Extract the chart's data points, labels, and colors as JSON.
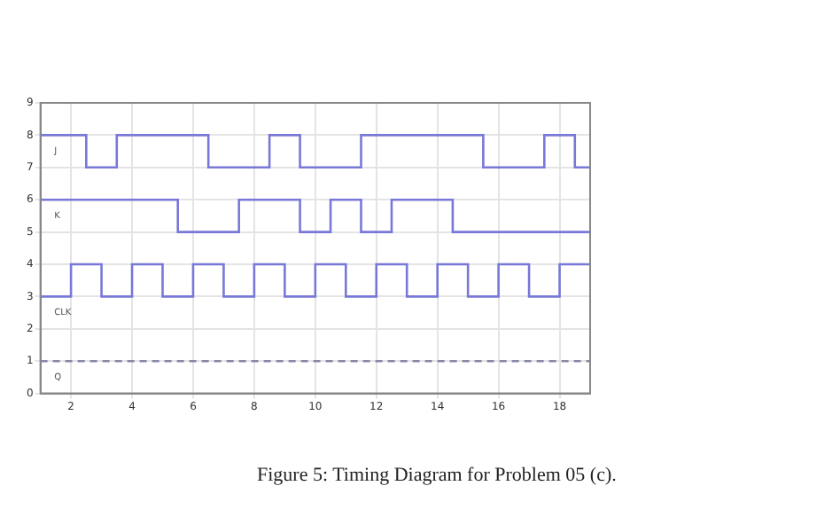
{
  "chart_data": {
    "type": "step",
    "xlim": [
      1,
      19
    ],
    "xticks": [
      2,
      4,
      6,
      8,
      10,
      12,
      14,
      16,
      18
    ],
    "ylim": [
      0,
      9
    ],
    "yticks": [
      0,
      1,
      2,
      3,
      4,
      5,
      6,
      7,
      8,
      9
    ],
    "grid": true,
    "legend": false,
    "marker": "none",
    "series": [
      {
        "name": "J",
        "color": "#7878d8",
        "x": [
          1,
          2.5,
          3.5,
          6.5,
          8.5,
          9.5,
          11.5,
          15.5,
          17.5,
          18.5,
          19
        ],
        "values": [
          8,
          7,
          8,
          7,
          8,
          7,
          8,
          7,
          8,
          7,
          7
        ]
      },
      {
        "name": "K",
        "color": "#7878d8",
        "x": [
          1,
          5.5,
          7.5,
          9.5,
          10.5,
          11.5,
          12.5,
          14.5,
          19
        ],
        "values": [
          6,
          5,
          6,
          5,
          6,
          5,
          6,
          5,
          5
        ]
      },
      {
        "name": "CLK",
        "color": "#7878d8",
        "x": [
          1,
          2,
          3,
          4,
          5,
          6,
          7,
          8,
          9,
          10,
          11,
          12,
          13,
          14,
          15,
          16,
          17,
          18,
          19
        ],
        "values": [
          3,
          4,
          3,
          4,
          3,
          4,
          3,
          4,
          3,
          4,
          3,
          4,
          3,
          4,
          3,
          4,
          3,
          4,
          4
        ]
      },
      {
        "name": "Q",
        "color": "#8888a8",
        "line_style": "dashed",
        "x": [
          1,
          19
        ],
        "values": [
          1,
          1
        ]
      }
    ],
    "annotations": [
      "Figure 5: Timing Diagram for Problem 05 (c)."
    ]
  }
}
